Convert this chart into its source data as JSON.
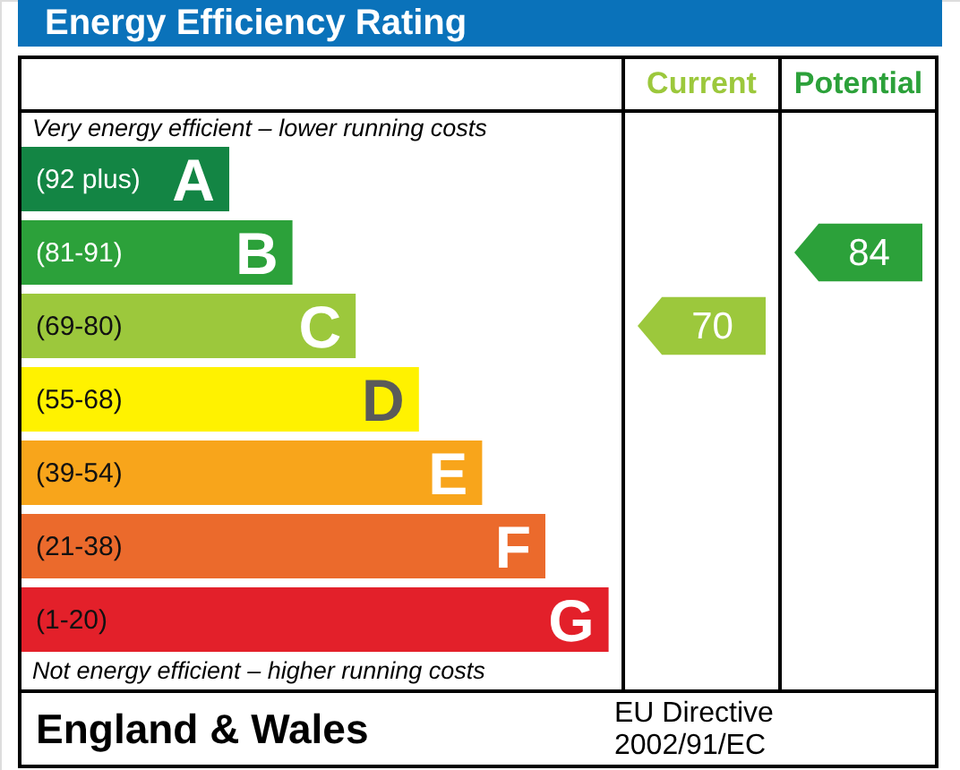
{
  "chart_data": {
    "type": "other",
    "title": "Energy Efficiency Rating",
    "categories": [
      "A",
      "B",
      "C",
      "D",
      "E",
      "F",
      "G"
    ],
    "colors": [
      "#138544",
      "#2ca13a",
      "#9cc83c",
      "#fff200",
      "#f8a51b",
      "#eb6a2c",
      "#e3202a"
    ],
    "series": [
      {
        "name": "Current",
        "color": "#9cc83c",
        "values": [
          null,
          null,
          70,
          null,
          null,
          null,
          null
        ]
      },
      {
        "name": "Potential",
        "color": "#2ca13a",
        "values": [
          null,
          84,
          null,
          null,
          null,
          null,
          null
        ]
      }
    ],
    "data_labels": true,
    "annotations": [
      {
        "text": "(92 plus)",
        "y": "A"
      },
      {
        "text": "(81-91)",
        "y": "B"
      },
      {
        "text": "(69-80)",
        "y": "C"
      },
      {
        "text": "(55-68)",
        "y": "D"
      },
      {
        "text": "(39-54)",
        "y": "E"
      },
      {
        "text": "(21-38)",
        "y": "F"
      },
      {
        "text": "(1-20)",
        "y": "G"
      },
      "Very energy efficient – lower running costs",
      "Not energy efficient – higher running costs",
      "England & Wales",
      "EU Directive 2002/91/EC"
    ]
  }
}
